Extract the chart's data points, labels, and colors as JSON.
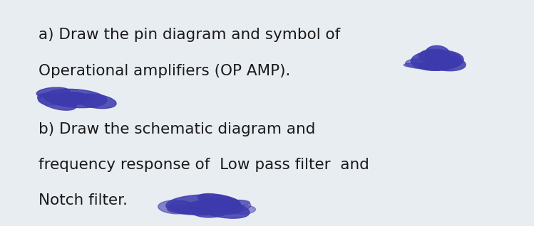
{
  "background_color": "#e8edf2",
  "text_color": "#1a1a1a",
  "line1a": "a) Draw the pin diagram and symbol of",
  "line1b": "Operational amplifiers (OP AMP).",
  "line2a": "b) Draw the schematic diagram and",
  "line2b": "frequency response of  Low pass filter  and",
  "line2c": "Notch filter.",
  "font_size": 15.5,
  "font_family": "DejaVu Sans",
  "blob_color": "#3d3aad",
  "blob_alpha": 0.85
}
